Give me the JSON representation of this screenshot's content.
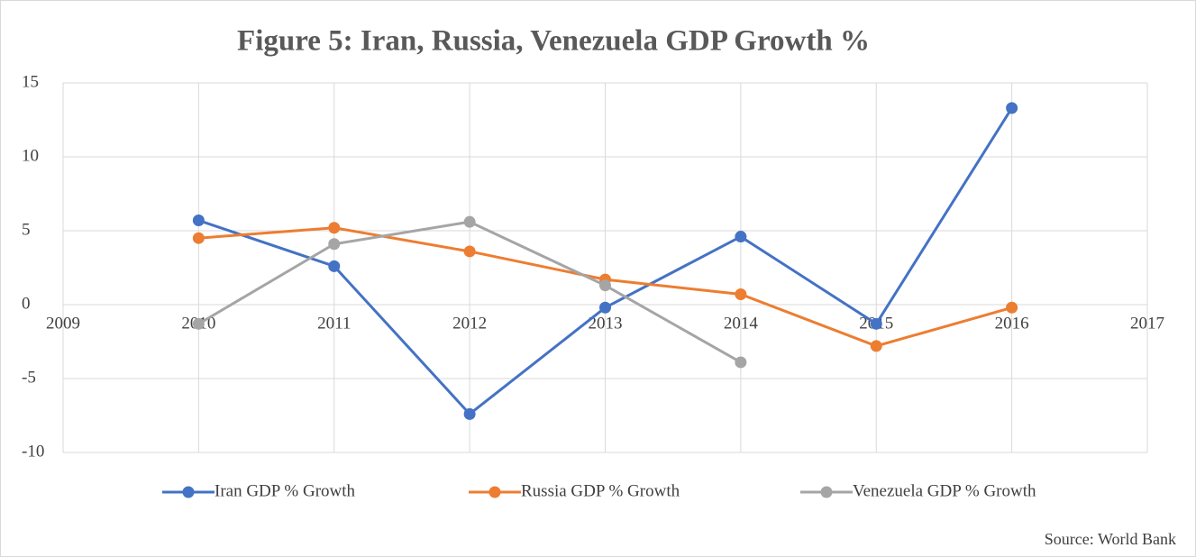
{
  "chart_data": {
    "type": "line",
    "title": "Figure 5: Iran, Russia, Venezuela GDP Growth %",
    "x": [
      2010,
      2011,
      2012,
      2013,
      2014,
      2015,
      2016
    ],
    "series": [
      {
        "name": "Iran GDP % Growth",
        "color": "#4472c4",
        "values": [
          5.7,
          2.6,
          -7.4,
          -0.2,
          4.6,
          -1.3,
          13.3
        ]
      },
      {
        "name": "Russia GDP % Growth",
        "color": "#ed7d31",
        "values": [
          4.5,
          5.2,
          3.6,
          1.7,
          0.7,
          -2.8,
          -0.2
        ]
      },
      {
        "name": "Venezuela GDP % Growth",
        "color": "#a5a5a5",
        "values": [
          -1.3,
          4.1,
          5.6,
          1.3,
          -3.9,
          null,
          null
        ]
      }
    ],
    "xlim": [
      2009,
      2017
    ],
    "xticks": [
      2009,
      2010,
      2011,
      2012,
      2013,
      2014,
      2015,
      2016,
      2017
    ],
    "ylim": [
      -10,
      15
    ],
    "yticks": [
      -10,
      -5,
      0,
      5,
      10,
      15
    ],
    "grid": true,
    "legend": "bottom",
    "annotation": "Source: World Bank"
  }
}
